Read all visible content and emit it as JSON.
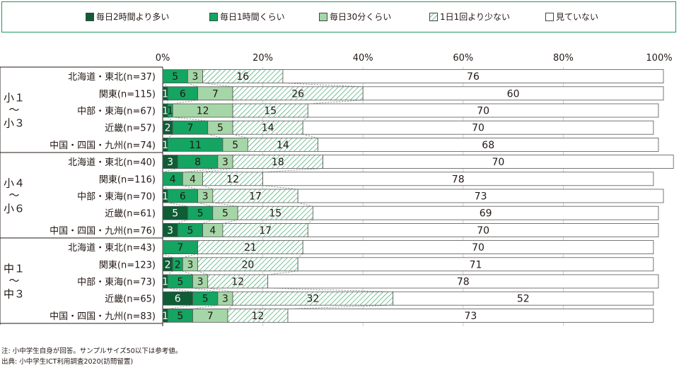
{
  "legend": [
    {
      "label": "毎日2時間より多い"
    },
    {
      "label": "毎日1時間くらい"
    },
    {
      "label": "毎日30分くらい"
    },
    {
      "label": "1日1回より少ない"
    },
    {
      "label": "見ていない"
    }
  ],
  "colors": {
    "s1": "#0f5c35",
    "s2": "#13a561",
    "s3": "#a5d6a7",
    "s4": "#ffffff",
    "s5": "#ffffff",
    "frame": "#1c9a5a"
  },
  "chart_data": {
    "type": "bar",
    "stacked": true,
    "orientation": "horizontal",
    "xlim": [
      0,
      100
    ],
    "ticks": [
      "0%",
      "20%",
      "40%",
      "60%",
      "80%",
      "100%"
    ],
    "series_names": [
      "毎日2時間より多い",
      "毎日1時間くらい",
      "毎日30分くらい",
      "1日1回より少ない",
      "見ていない"
    ],
    "groups": [
      {
        "label": "小１〜小３",
        "rows": [
          {
            "category": "北海道・東北(n=37)",
            "values": [
              0,
              5,
              3,
              16,
              76
            ]
          },
          {
            "category": "関東(n=115)",
            "values": [
              1,
              6,
              7,
              26,
              60
            ]
          },
          {
            "category": "中部・東海(n=67)",
            "values": [
              1,
              1,
              12,
              15,
              70
            ]
          },
          {
            "category": "近畿(n=57)",
            "values": [
              2,
              7,
              5,
              14,
              70
            ]
          },
          {
            "category": "中国・四国・九州(n=74)",
            "values": [
              1,
              11,
              5,
              14,
              68
            ]
          }
        ]
      },
      {
        "label": "小４〜小６",
        "rows": [
          {
            "category": "北海道・東北(n=40)",
            "values": [
              3,
              8,
              3,
              18,
              70
            ]
          },
          {
            "category": "関東(n=116)",
            "values": [
              0,
              4,
              4,
              12,
              78
            ]
          },
          {
            "category": "中部・東海(n=70)",
            "values": [
              1,
              6,
              3,
              17,
              73
            ]
          },
          {
            "category": "近畿(n=61)",
            "values": [
              5,
              5,
              5,
              15,
              69
            ]
          },
          {
            "category": "中国・四国・九州(n=76)",
            "values": [
              3,
              5,
              4,
              17,
              70
            ]
          }
        ]
      },
      {
        "label": "中１〜中３",
        "rows": [
          {
            "category": "北海道・東北(n=43)",
            "values": [
              0,
              7,
              0,
              21,
              70
            ]
          },
          {
            "category": "関東(n=123)",
            "values": [
              2,
              2,
              3,
              20,
              71
            ]
          },
          {
            "category": "中部・東海(n=73)",
            "values": [
              1,
              5,
              3,
              12,
              78
            ]
          },
          {
            "category": "近畿(n=65)",
            "values": [
              6,
              5,
              3,
              32,
              52
            ]
          },
          {
            "category": "中国・四国・九州(n=83)",
            "values": [
              1,
              5,
              7,
              12,
              73
            ]
          }
        ]
      }
    ]
  },
  "group_labels": [
    {
      "top": "小１",
      "sep": "〜",
      "bottom": "小３"
    },
    {
      "top": "小４",
      "sep": "〜",
      "bottom": "小６"
    },
    {
      "top": "中１",
      "sep": "〜",
      "bottom": "中３"
    }
  ],
  "notes": {
    "note": "注: 小中学生自身が回答。サンプルサイズ50以下は参考値。",
    "source": "出典: 小中学生ICT利用調査2020(訪問留置)"
  }
}
